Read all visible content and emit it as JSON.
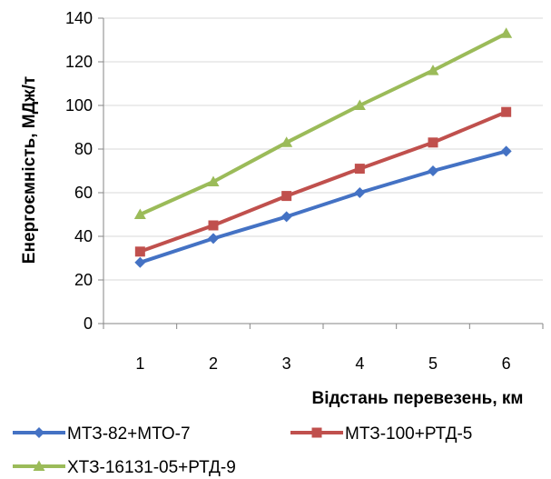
{
  "chart_data": {
    "type": "line",
    "xlabel": "Відстань перевезень, км",
    "ylabel": "Енергоємність, МДж/т",
    "categories": [
      "1",
      "2",
      "3",
      "4",
      "5",
      "6"
    ],
    "ylim": [
      0,
      140
    ],
    "y_ticks": [
      "0",
      "20",
      "40",
      "60",
      "80",
      "100",
      "120",
      "140"
    ],
    "grid": "horizontal",
    "legend_position": "bottom",
    "series": [
      {
        "name": "МТЗ-82+МТО-7",
        "color": "#4472c4",
        "marker": "diamond",
        "values": [
          28,
          39,
          49,
          60,
          70,
          79
        ]
      },
      {
        "name": "МТЗ-100+РТД-5",
        "color": "#c0504d",
        "marker": "square",
        "values": [
          33,
          45,
          58.5,
          71,
          83,
          97
        ]
      },
      {
        "name": "ХТЗ-16131-05+РТД-9",
        "color": "#9bbb59",
        "marker": "triangle",
        "values": [
          50,
          65,
          83,
          100,
          116,
          133
        ]
      }
    ]
  }
}
